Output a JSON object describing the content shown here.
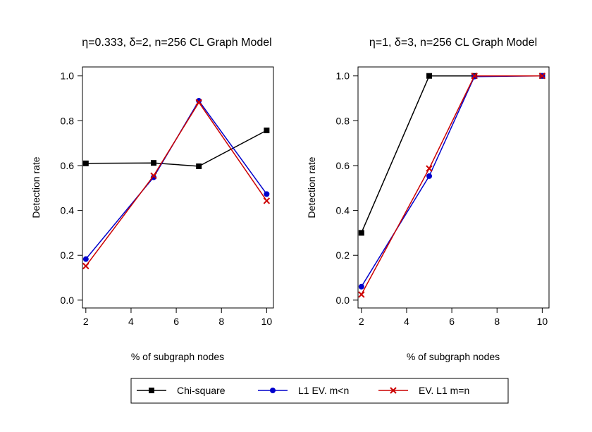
{
  "chart_data": [
    {
      "type": "line",
      "title": "η=0.333, δ=2, n=256 CL Graph Model",
      "xlabel": "% of subgraph nodes",
      "ylabel": "Detection rate",
      "x": [
        2,
        5,
        7,
        10
      ],
      "xlim": [
        1.85,
        10.3
      ],
      "ylim": [
        -0.035,
        1.04
      ],
      "xticks": [
        "2",
        "4",
        "6",
        "8",
        "10"
      ],
      "yticks": [
        "0.0",
        "0.2",
        "0.4",
        "0.6",
        "0.8",
        "1.0"
      ],
      "series": [
        {
          "name": "Chi-square",
          "values": [
            0.61,
            0.612,
            0.597,
            0.757
          ],
          "color": "#000000",
          "marker": "square"
        },
        {
          "name": "L1 EV. m<n",
          "values": [
            0.183,
            0.548,
            0.889,
            0.473
          ],
          "color": "#0000cc",
          "marker": "circle"
        },
        {
          "name": "EV. L1 m=n",
          "values": [
            0.152,
            0.555,
            0.882,
            0.443
          ],
          "color": "#cc0000",
          "marker": "cross"
        }
      ]
    },
    {
      "type": "line",
      "title": "η=1, δ=3, n=256 CL Graph Model",
      "xlabel": "% of subgraph nodes",
      "ylabel": "Detection rate",
      "x": [
        2,
        5,
        7,
        10
      ],
      "xlim": [
        1.85,
        10.3
      ],
      "ylim": [
        -0.035,
        1.04
      ],
      "xticks": [
        "2",
        "4",
        "6",
        "8",
        "10"
      ],
      "yticks": [
        "0.0",
        "0.2",
        "0.4",
        "0.6",
        "0.8",
        "1.0"
      ],
      "series": [
        {
          "name": "Chi-square",
          "values": [
            0.3,
            1.0,
            1.0,
            1.0
          ],
          "color": "#000000",
          "marker": "square"
        },
        {
          "name": "L1 EV. m<n",
          "values": [
            0.06,
            0.553,
            0.997,
            1.0
          ],
          "color": "#0000cc",
          "marker": "circle"
        },
        {
          "name": "EV. L1 m=n",
          "values": [
            0.025,
            0.587,
            1.0,
            1.0
          ],
          "color": "#cc0000",
          "marker": "cross"
        }
      ]
    }
  ],
  "legend": {
    "placement": "bottom-center",
    "entries": [
      {
        "label": "Chi-square",
        "color": "#000000",
        "marker": "square"
      },
      {
        "label": "L1 EV. m<n",
        "color": "#0000cc",
        "marker": "circle"
      },
      {
        "label": "EV. L1 m=n",
        "color": "#cc0000",
        "marker": "cross"
      }
    ]
  }
}
